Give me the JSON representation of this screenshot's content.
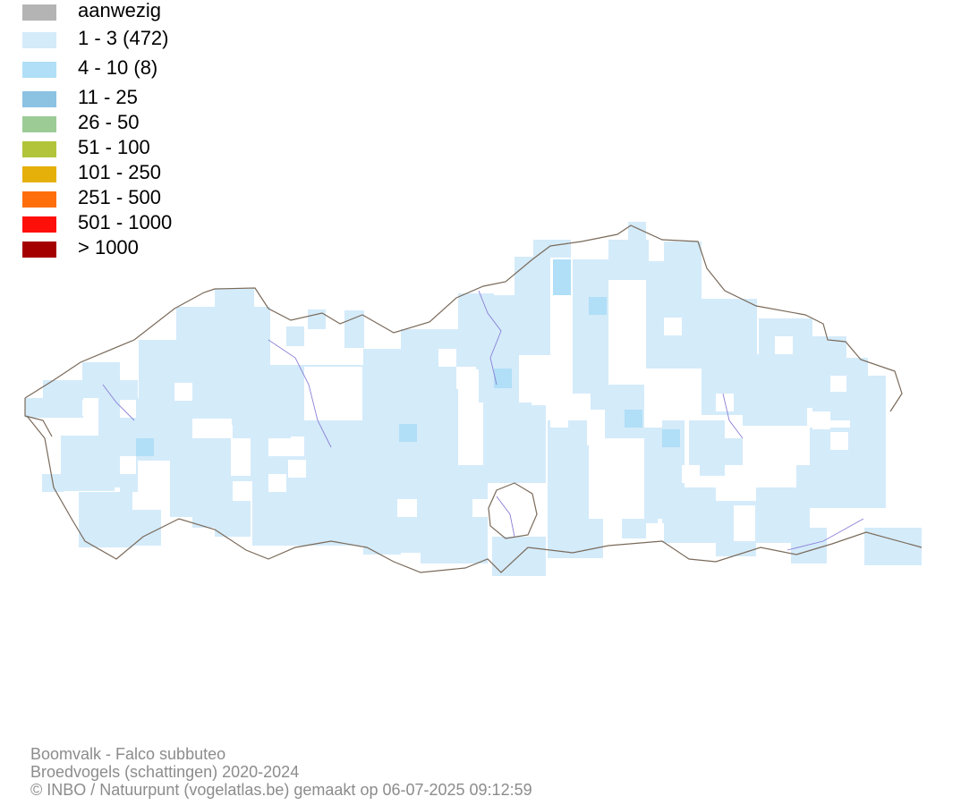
{
  "legend": {
    "items": [
      {
        "label": "aanwezig",
        "color": "#b4b4b4"
      },
      {
        "label": "1 - 3 (472)",
        "color": "#d4ebfa"
      },
      {
        "label": "4 - 10 (8)",
        "color": "#b0dff7"
      },
      {
        "label": "11 - 25",
        "color": "#8cc2e2"
      },
      {
        "label": "26 - 50",
        "color": "#9ccb96"
      },
      {
        "label": "51 - 100",
        "color": "#b2c43a"
      },
      {
        "label": "101 - 250",
        "color": "#e6b00a"
      },
      {
        "label": "251 - 500",
        "color": "#ff6e0a"
      },
      {
        "label": "501 - 1000",
        "color": "#ff0f0a"
      },
      {
        "label": "> 1000",
        "color": "#a50000"
      }
    ]
  },
  "map": {
    "cell_color_low": "#d4ebfa",
    "cell_color_mid": "#b0dff7",
    "border_color": "#7a6a5a",
    "river_color": "#8a7fd6"
  },
  "footer": {
    "line1": "Boomvalk - Falco subbuteo",
    "line2": "Broedvogels (schattingen) 2020-2024",
    "line3": "© INBO / Natuurpunt (vogelatlas.be) gemaakt op 06-07-2025 09:12:59"
  }
}
